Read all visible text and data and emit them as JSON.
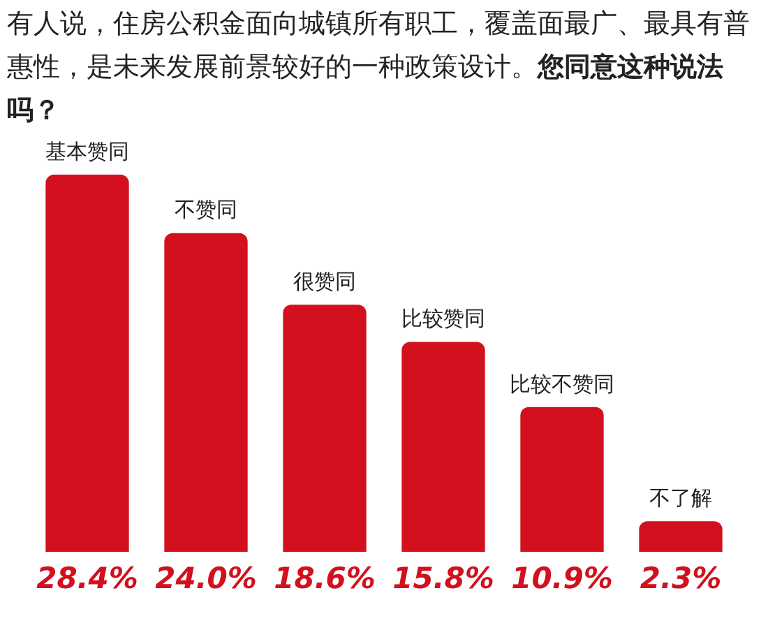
{
  "chart_data": {
    "type": "bar",
    "title": "有人说，住房公积金面向城镇所有职工，覆盖面最广、最具有普惠性，是未来发展前景较好的一种政策设计。",
    "subtitle": "您同意这种说法吗？",
    "categories": [
      "基本赞同",
      "不赞同",
      "很赞同",
      "比较赞同",
      "比较不赞同",
      "不了解"
    ],
    "values": [
      28.4,
      24.0,
      18.6,
      15.8,
      10.9,
      2.3
    ],
    "value_labels": [
      "28.4%",
      "24.0%",
      "18.6%",
      "15.8%",
      "10.9%",
      "2.3%"
    ],
    "color": "#d2101e"
  }
}
